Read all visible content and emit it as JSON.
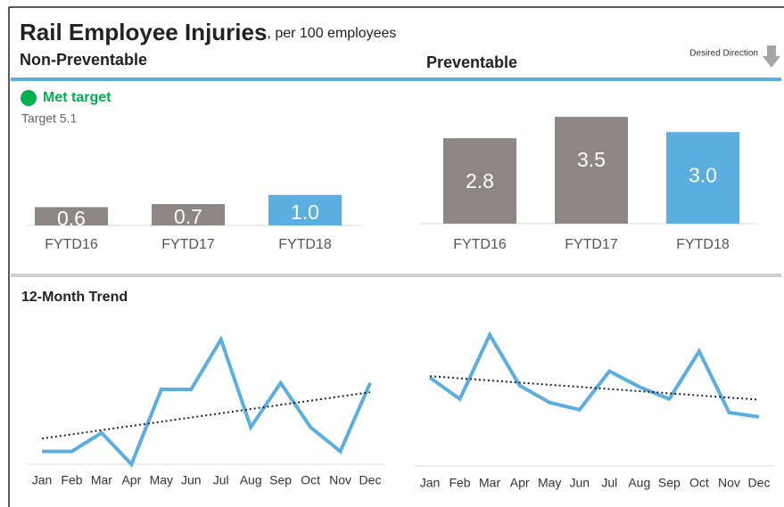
{
  "header": {
    "title": "Rail Employee Injuries",
    "subtitle": ", per 100 employees",
    "desired_direction": "Desired Direction",
    "status": "Met target",
    "target": "Target 5.1",
    "trend_title": "12-Month Trend"
  },
  "chart_data": [
    {
      "type": "bar",
      "title": "Non-Preventable",
      "categories": [
        "FYTD16",
        "FYTD17",
        "FYTD18"
      ],
      "values": [
        0.6,
        0.7,
        1.0
      ],
      "value_labels": [
        "0.6",
        "0.7",
        "1.0"
      ],
      "colors": [
        "#8c8784",
        "#8c8784",
        "#5aafe0"
      ],
      "ylim": [
        0,
        4
      ]
    },
    {
      "type": "bar",
      "title": "Preventable",
      "categories": [
        "FYTD16",
        "FYTD17",
        "FYTD18"
      ],
      "values": [
        2.8,
        3.5,
        3.0
      ],
      "value_labels": [
        "2.8",
        "3.5",
        "3.0"
      ],
      "colors": [
        "#8c8784",
        "#8c8784",
        "#5aafe0"
      ],
      "ylim": [
        0,
        4
      ]
    },
    {
      "type": "line",
      "categories": [
        "Jan",
        "Feb",
        "Mar",
        "Apr",
        "May",
        "Jun",
        "Jul",
        "Aug",
        "Sep",
        "Oct",
        "Nov",
        "Dec"
      ],
      "values": [
        0.18,
        0.18,
        0.44,
        0.0,
        1.05,
        1.05,
        1.75,
        0.52,
        1.14,
        0.52,
        0.18,
        1.14
      ],
      "color": "#5aafe0",
      "trend": [
        0.36,
        1.01
      ],
      "ylim": [
        0,
        2
      ]
    },
    {
      "type": "line",
      "categories": [
        "Jan",
        "Feb",
        "Mar",
        "Apr",
        "May",
        "Jun",
        "Jul",
        "Aug",
        "Sep",
        "Oct",
        "Nov",
        "Dec"
      ],
      "values": [
        1.24,
        0.94,
        1.84,
        1.13,
        0.89,
        0.79,
        1.33,
        1.11,
        0.94,
        1.61,
        0.75,
        0.69
      ],
      "color": "#5aafe0",
      "trend": [
        1.26,
        0.93
      ],
      "ylim": [
        0,
        2
      ]
    }
  ]
}
